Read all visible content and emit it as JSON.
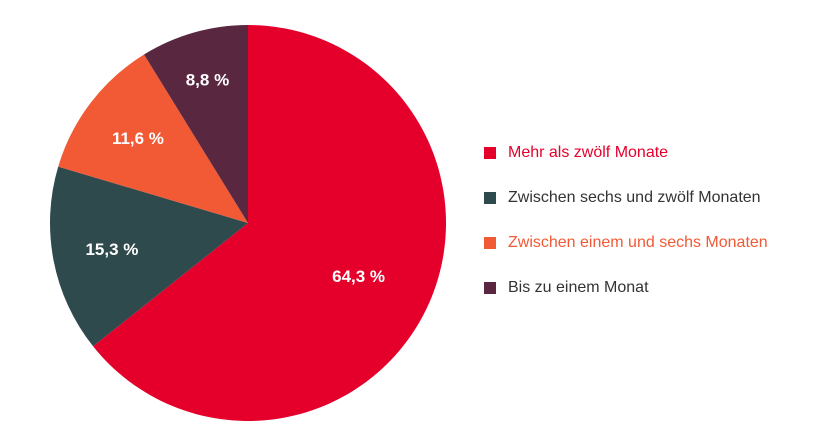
{
  "chart_data": {
    "type": "pie",
    "title": "",
    "categories": [
      "Mehr als zwölf Monate",
      "Zwischen sechs und zwölf Monaten",
      "Zwischen einem und sechs Monaten",
      "Bis zu einem Monat"
    ],
    "values": [
      64.3,
      15.3,
      11.6,
      8.8
    ],
    "value_labels": [
      "64,3 %",
      "15,3 %",
      "11,6 %",
      "8,8 %"
    ],
    "colors": [
      "#e4002b",
      "#2f4a4c",
      "#f15a35",
      "#5a2741"
    ],
    "legend_text_colors": [
      "#e4002b",
      "#333333",
      "#f15a35",
      "#333333"
    ],
    "legend_position": "right",
    "start_angle": "top",
    "direction": "clockwise"
  }
}
